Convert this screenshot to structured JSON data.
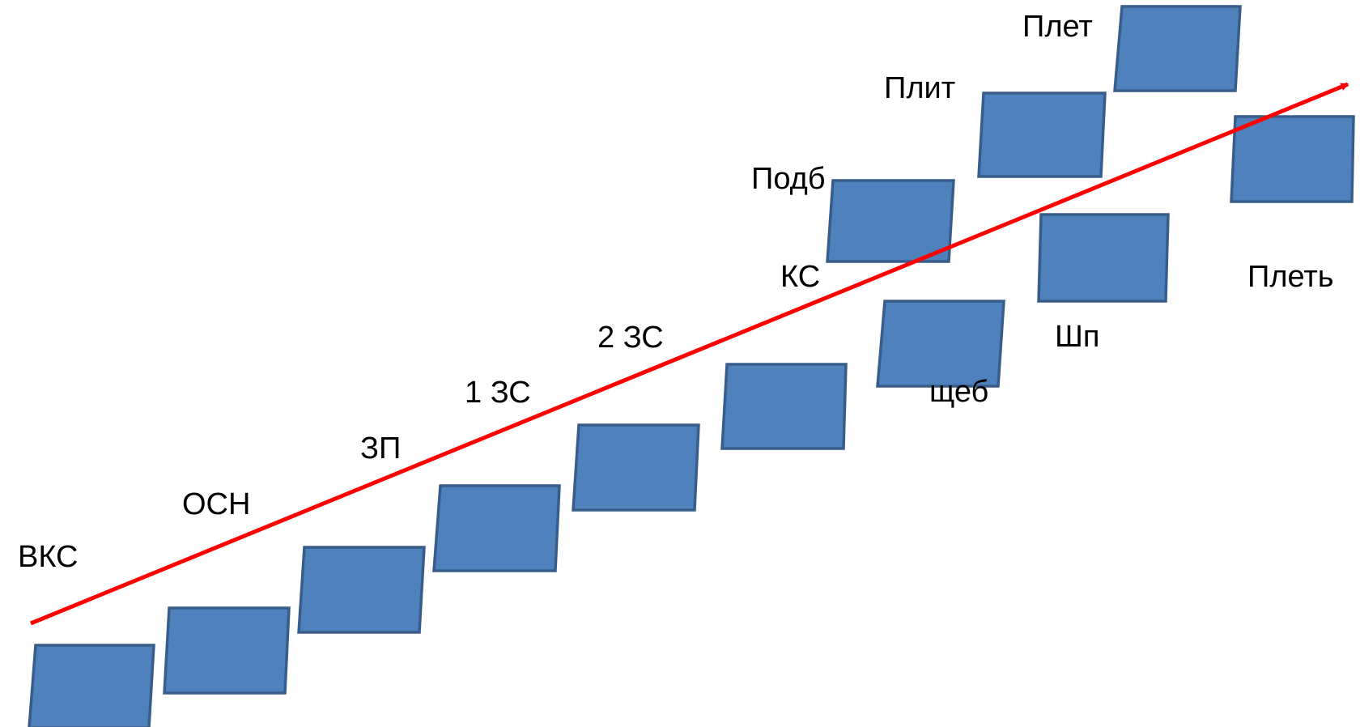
{
  "colors": {
    "block_fill": "#4f81bd",
    "block_stroke": "#385d8a",
    "arrow": "#ff0000",
    "text": "#000000"
  },
  "arrow": {
    "direction": "up-right"
  },
  "labels": {
    "vks": "ВКС",
    "osn": "ОСН",
    "zp": "ЗП",
    "zs1": "1 ЗС",
    "zs2": "2 ЗС",
    "ks": "КС",
    "podb": "Подб",
    "plit": "Плит",
    "plet_top": "Плет",
    "shcheb": "щеб",
    "shp": "Шп",
    "plet": "Плеть"
  }
}
